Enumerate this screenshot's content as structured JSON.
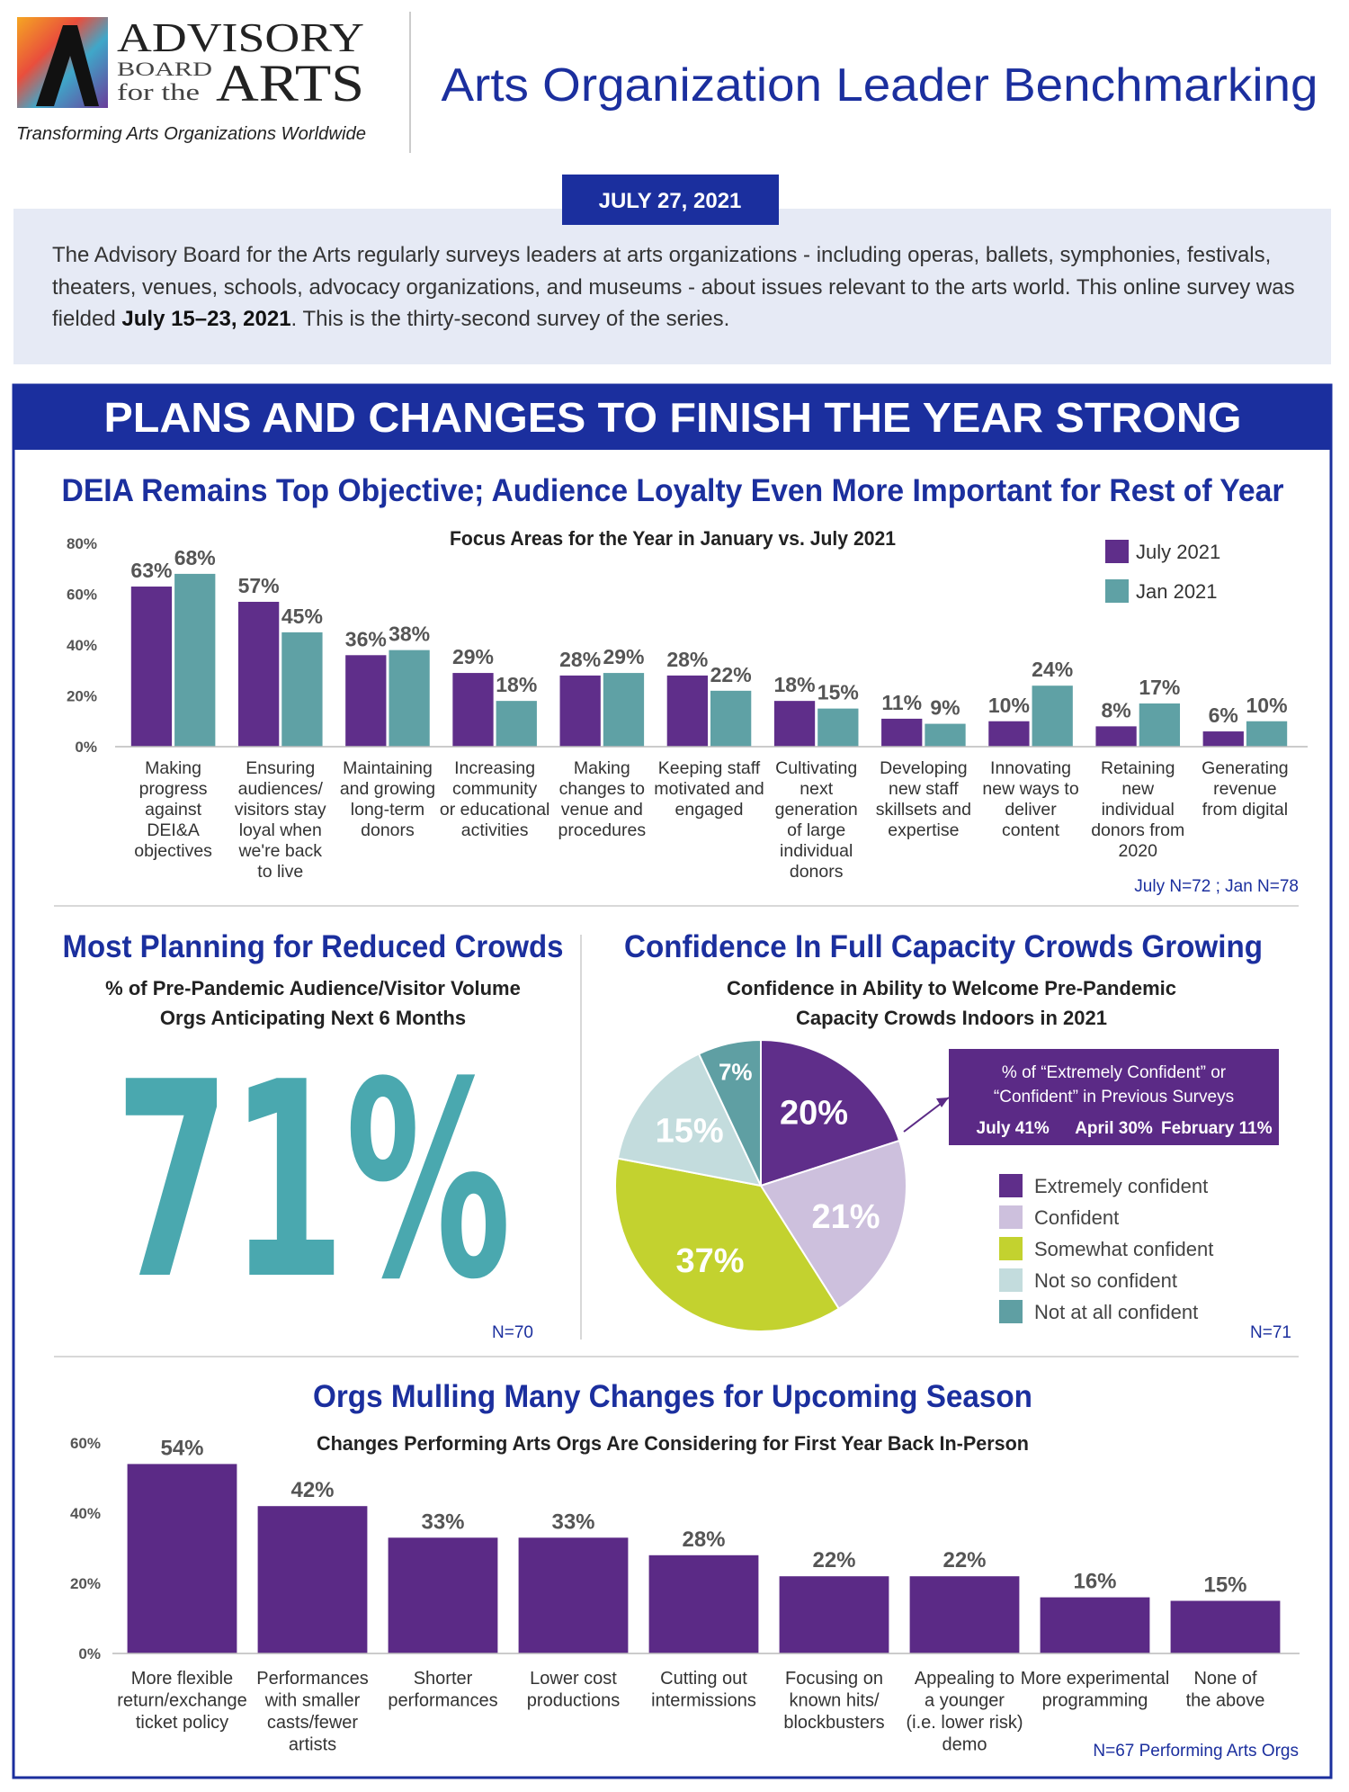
{
  "header": {
    "logo": {
      "advisory": "ADVISORY",
      "board": "BOARD",
      "for_the": "for the",
      "arts": "ARTS"
    },
    "tagline": "Transforming Arts Organizations Worldwide",
    "title": "Arts Organization Leader Benchmarking"
  },
  "date": "JULY 27, 2021",
  "intro": {
    "parts": [
      "The Advisory Board for the Arts regularly surveys leaders at arts organizations - including  operas, ballets, symphonies, festivals, theaters, venues, schools, advocacy organizations, and museums - about issues relevant to the arts world. This online survey was fielded ",
      "July 15–23, 2021",
      ". This is the thirty-second survey of the series."
    ]
  },
  "section_title": "PLANS AND CHANGES TO FINISH THE YEAR STRONG",
  "chart_data": [
    {
      "type": "bar",
      "title": "DEIA Remains Top Objective; Audience Loyalty Even More Important for Rest of Year",
      "subtitle": "Focus Areas for the Year in January vs. July 2021",
      "categories": [
        "Making\nprogress\nagainst\nDEI&A\nobjectives",
        "Ensuring\naudiences/\nvisitors stay\nloyal when\nwe're back\nto live",
        "Maintaining\nand growing\nlong-term\ndonors",
        "Increasing\ncommunity\nor educational\nactivities",
        "Making\nchanges to\nvenue and\nprocedures",
        "Keeping staff\nmotivated and\nengaged",
        "Cultivating\nnext\ngeneration\nof large\nindividual\ndonors",
        "Developing\nnew staff\nskillsets and\nexpertise",
        "Innovating\nnew ways to\ndeliver\ncontent",
        "Retaining\nnew\nindividual\ndonors from\n2020",
        "Generating\nrevenue\nfrom digital"
      ],
      "series": [
        {
          "name": "July 2021",
          "color": "#5f2e8a",
          "values": [
            63,
            57,
            36,
            29,
            28,
            28,
            18,
            11,
            10,
            8,
            6
          ],
          "value_labels": [
            "63%",
            "57%",
            "36%",
            "29%",
            "28%",
            "28%",
            "18%",
            "11%",
            "10%",
            "8%",
            "6%"
          ]
        },
        {
          "name": "Jan 2021",
          "color": "#5fa1a5",
          "values": [
            68,
            45,
            38,
            18,
            29,
            22,
            15,
            9,
            24,
            17,
            10
          ],
          "value_labels": [
            "68%",
            "45%",
            "38%",
            "18%",
            "29%",
            "22%",
            "15%",
            "9%",
            "24%",
            "17%",
            "10%"
          ]
        }
      ],
      "ylim": [
        0,
        80
      ],
      "yticks": [
        {
          "value": 0,
          "label": "0%"
        },
        {
          "value": 20,
          "label": "20%"
        },
        {
          "value": 40,
          "label": "40%"
        },
        {
          "value": 60,
          "label": "60%"
        },
        {
          "value": 80,
          "label": "80%"
        }
      ],
      "grid": false,
      "legend": "top-right",
      "note": "July N=72 ; Jan N=78"
    },
    {
      "type": "stat",
      "title": "Most Planning for Reduced Crowds",
      "subtitle": "% of Pre-Pandemic Audience/Visitor Volume\nOrgs Anticipating Next 6 Months",
      "values": [
        71
      ],
      "value_labels": [
        "71%"
      ],
      "color": "#4aa8af",
      "note": "N=70"
    },
    {
      "type": "pie",
      "title": "Confidence In Full Capacity Crowds Growing",
      "subtitle": "Confidence in Ability to Welcome Pre-Pandemic\nCapacity Crowds Indoors in 2021",
      "categories": [
        "Extremely confident",
        "Confident",
        "Somewhat confident",
        "Not so confident",
        "Not at all confident"
      ],
      "values": [
        20,
        21,
        37,
        15,
        7
      ],
      "value_labels": [
        "20%",
        "21%",
        "37%",
        "15%",
        "7%"
      ],
      "colors": [
        "#5f2e8a",
        "#cdc0dd",
        "#c3d22f",
        "#c3dcdd",
        "#5f9fa3"
      ],
      "legend": "right",
      "annotation": {
        "lines": [
          "% of “Extremely Confident” or",
          "“Confident” in Previous Surveys"
        ],
        "items": [
          "July 41%",
          "April 30%",
          "February 11%"
        ]
      },
      "note": "N=71"
    },
    {
      "type": "bar",
      "title": "Orgs Mulling Many Changes for Upcoming Season",
      "subtitle": "Changes Performing Arts Orgs Are Considering for First Year Back In-Person",
      "categories": [
        "More flexible\nreturn/exchange\nticket policy",
        "Performances\nwith smaller\ncasts/fewer\nartists",
        "Shorter\nperformances",
        "Lower cost\nproductions",
        "Cutting out\nintermissions",
        "Focusing on\nknown hits/\nblockbusters",
        "Appealing to\na younger\n(i.e. lower risk)\ndemo",
        "More experimental\nprogramming",
        "None of\nthe above"
      ],
      "values": [
        54,
        42,
        33,
        33,
        28,
        22,
        22,
        16,
        15
      ],
      "value_labels": [
        "54%",
        "42%",
        "33%",
        "33%",
        "28%",
        "22%",
        "22%",
        "16%",
        "15%"
      ],
      "color": "#5b2a86",
      "ylim": [
        0,
        60
      ],
      "yticks": [
        {
          "value": 0,
          "label": "0%"
        },
        {
          "value": 20,
          "label": "20%"
        },
        {
          "value": 40,
          "label": "40%"
        },
        {
          "value": 60,
          "label": "60%"
        }
      ],
      "grid": false,
      "note": "N=67 Performing Arts Orgs"
    }
  ]
}
